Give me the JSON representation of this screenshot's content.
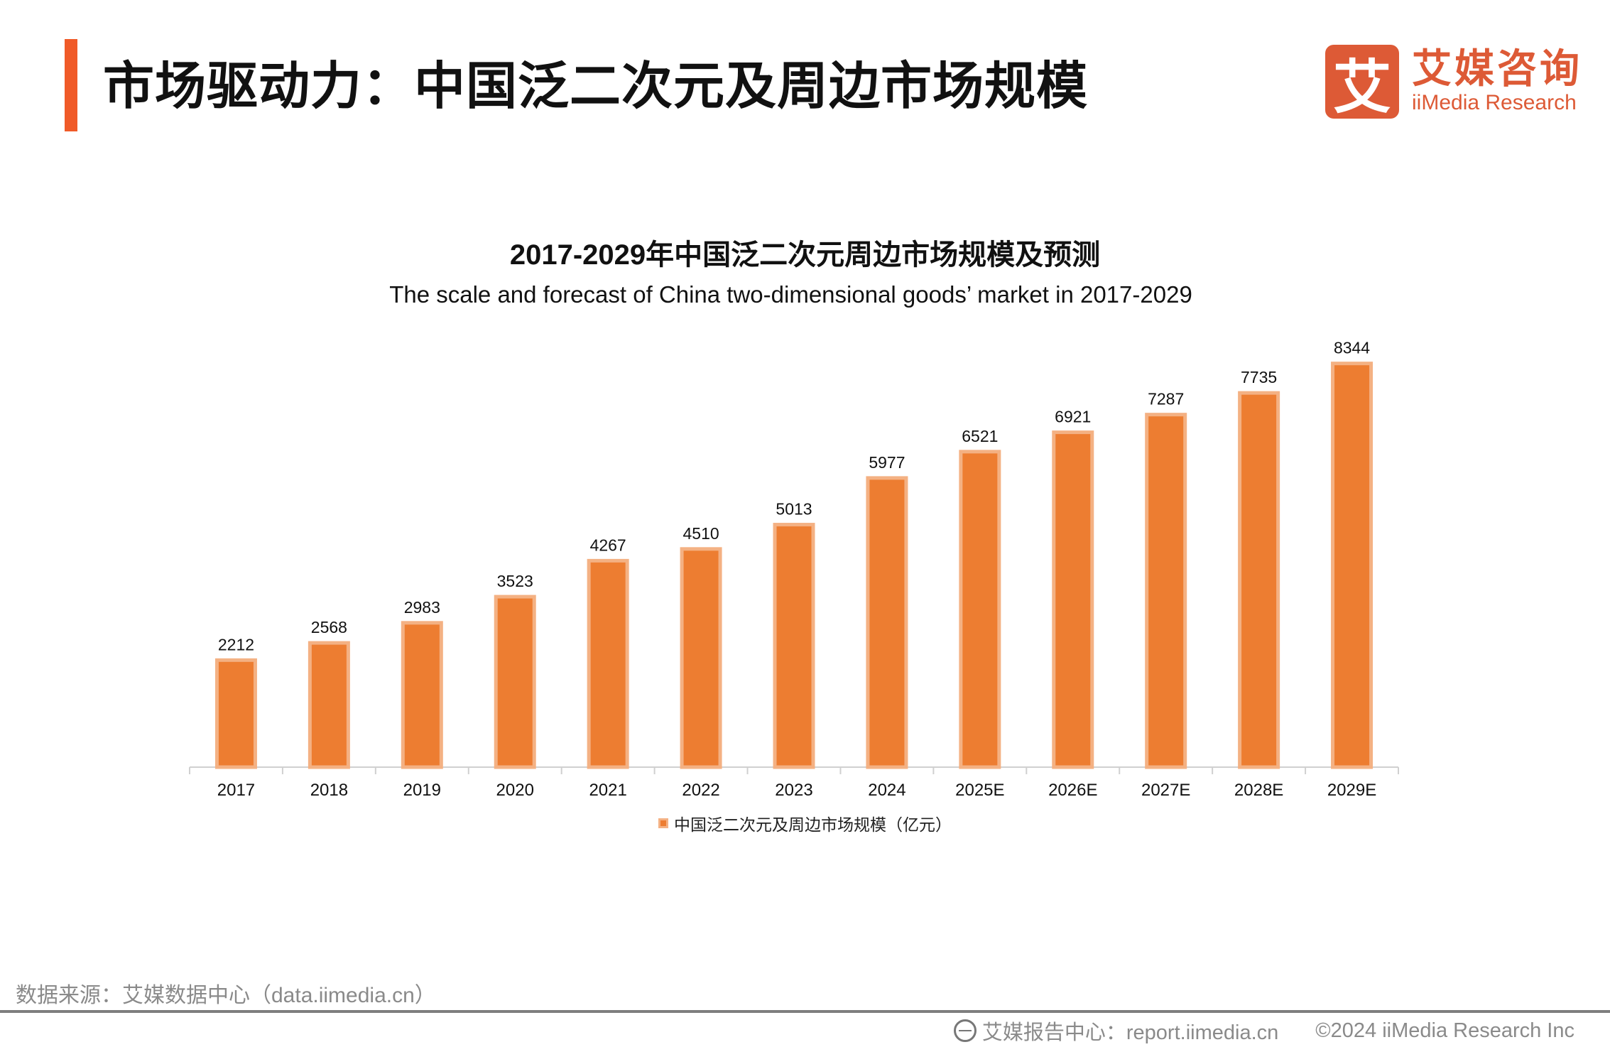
{
  "header": {
    "title": "市场驱动力：中国泛二次元及周边市场规模",
    "accent_color": "#f05a28"
  },
  "logo": {
    "mark": "艾",
    "name_cn": "艾媒咨询",
    "name_en": "iiMedia Research",
    "color": "#dd5a36"
  },
  "chart_data": {
    "type": "bar",
    "title": "2017-2029年中国泛二次元周边市场规模及预测",
    "subtitle": "The scale and forecast of China two-dimensional goods’ market in 2017-2029",
    "categories": [
      "2017",
      "2018",
      "2019",
      "2020",
      "2021",
      "2022",
      "2023",
      "2024",
      "2025E",
      "2026E",
      "2027E",
      "2028E",
      "2029E"
    ],
    "series": [
      {
        "name": "中国泛二次元及周边市场规模（亿元）",
        "values": [
          2212,
          2568,
          2983,
          3523,
          4267,
          4510,
          5013,
          5977,
          6521,
          6921,
          7287,
          7735,
          8344
        ],
        "color": "#ed7d31",
        "border_color": "#f4b183"
      }
    ],
    "ylim": [
      0,
      9000
    ],
    "grid": false,
    "y_axis_visible": false,
    "data_labels": true,
    "legend_position": "bottom"
  },
  "footer": {
    "source": "数据来源：艾媒数据中心（data.iimedia.cn）",
    "report_center": "艾媒报告中心：report.iimedia.cn",
    "copyright": "©2024  iiMedia Research Inc",
    "icon": "globe-cursor-icon"
  }
}
